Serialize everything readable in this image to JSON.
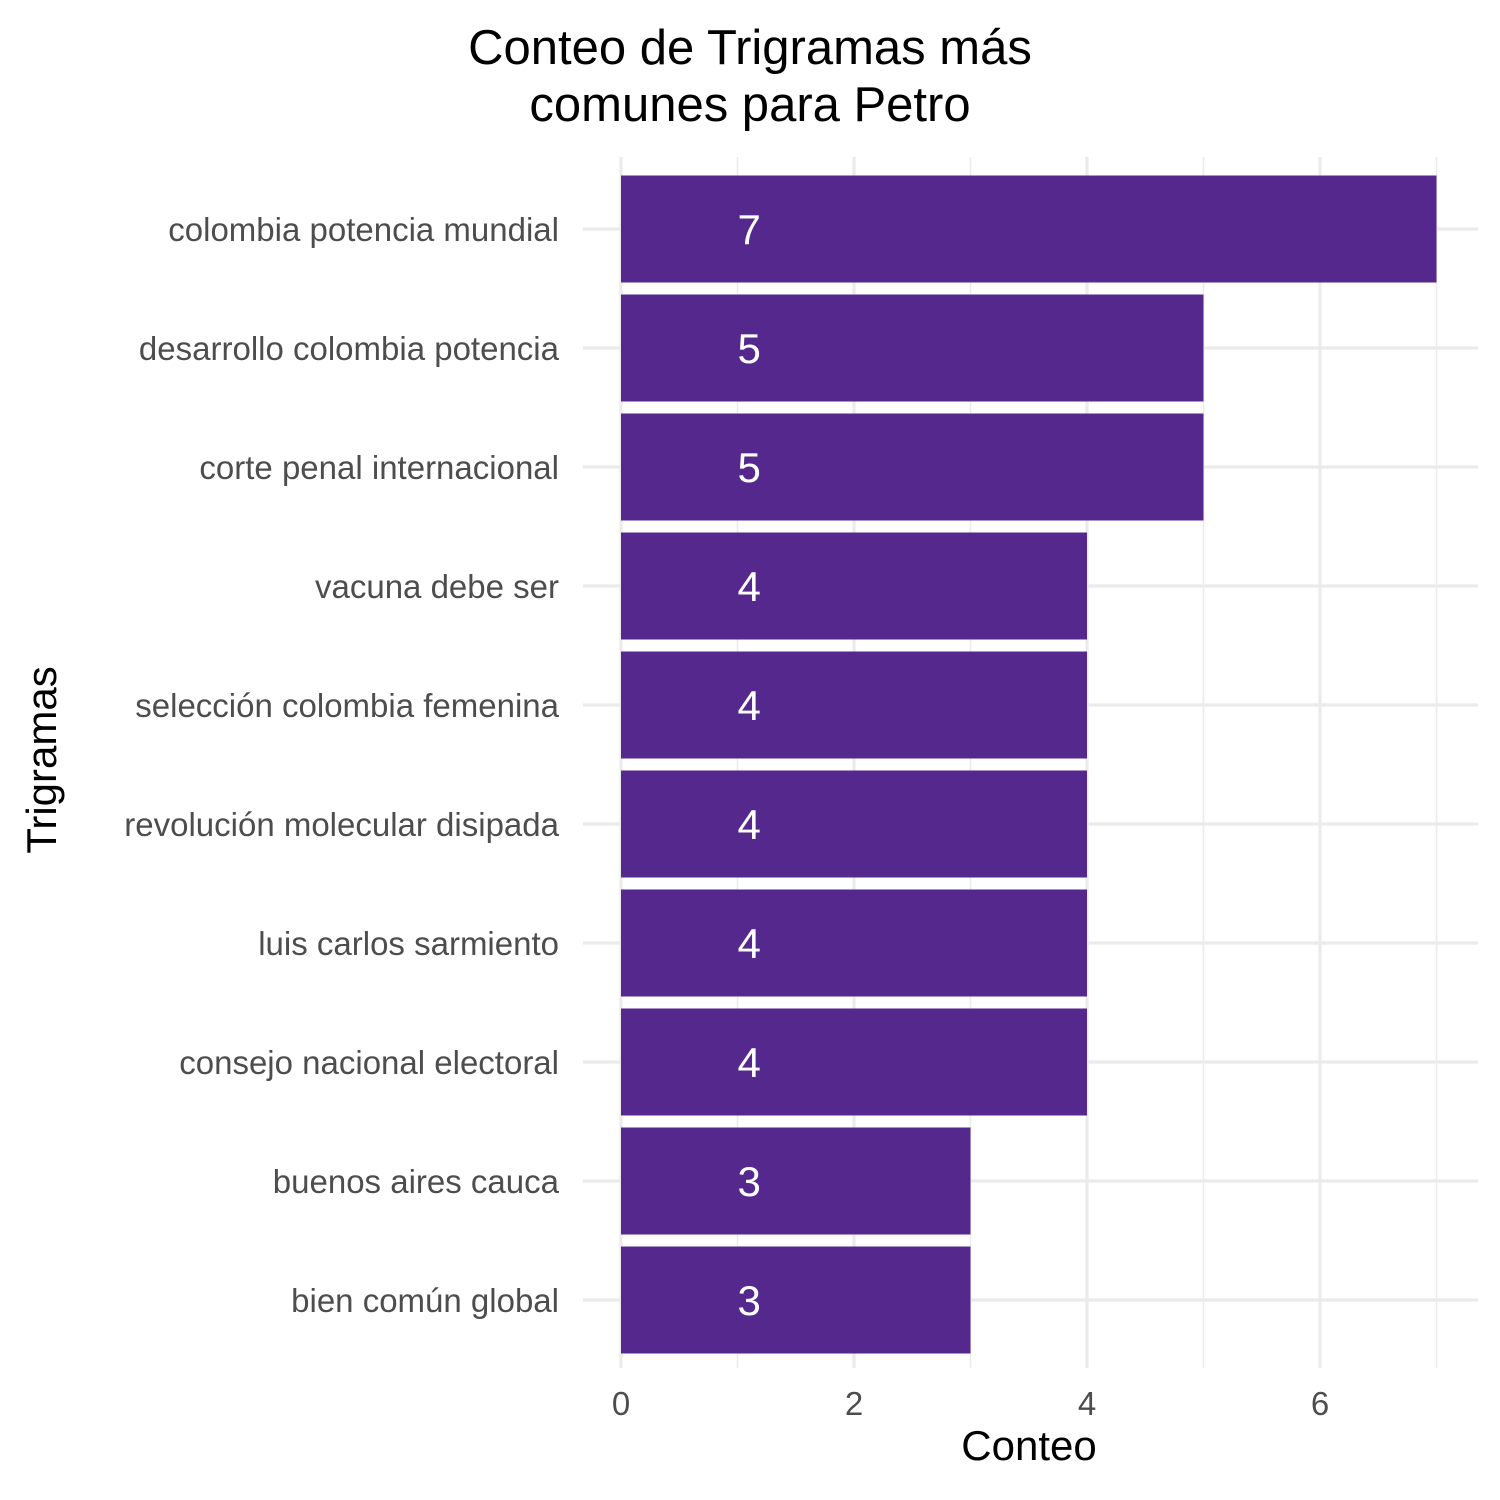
{
  "chart_data": {
    "type": "bar",
    "orientation": "horizontal",
    "title": [
      "Conteo de Trigramas más",
      "comunes para Petro"
    ],
    "xlabel": "Conteo",
    "ylabel": "Trigramas",
    "categories": [
      "colombia potencia mundial",
      "desarrollo colombia potencia",
      "corte penal internacional",
      "vacuna debe ser",
      "selección colombia femenina",
      "revolución molecular disipada",
      "luis carlos sarmiento",
      "consejo nacional electoral",
      "buenos aires cauca",
      "bien común global"
    ],
    "values": [
      7,
      5,
      5,
      4,
      4,
      4,
      4,
      4,
      3,
      3
    ],
    "xlim": [
      0,
      7
    ],
    "x_ticks": [
      0,
      2,
      4,
      6
    ],
    "data_label_position": 1.1,
    "grid": true,
    "legend": "none",
    "bar_color": "#54288c"
  }
}
